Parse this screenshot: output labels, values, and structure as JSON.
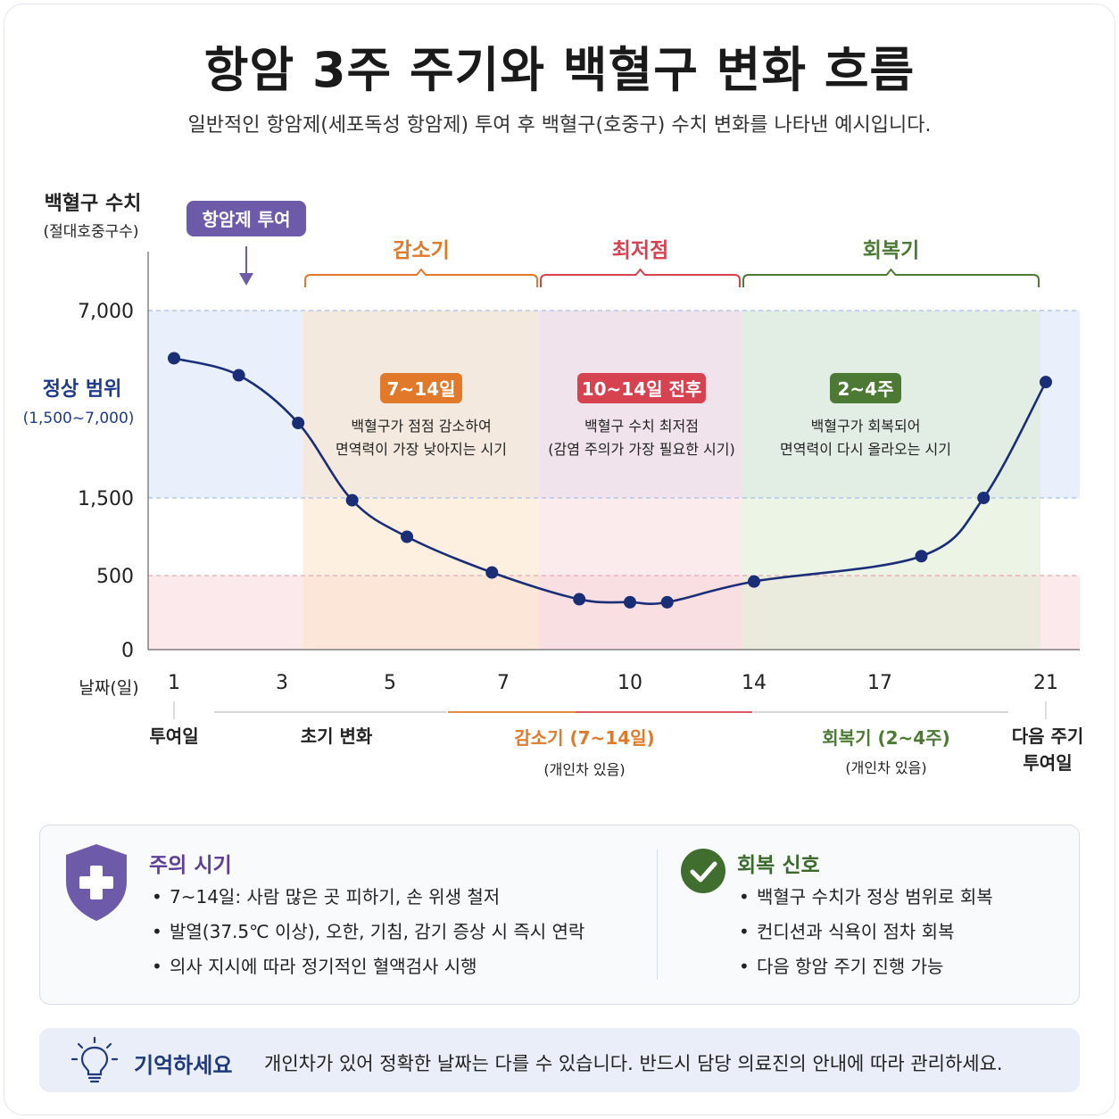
{
  "title": "항암 3주 주기와 백혈구 변화 흐름",
  "subtitle": "일반적인 항암제(세포독성 항암제) 투여 후 백혈구(호중구) 수치 변화를 나타낸 예시입니다.",
  "colors": {
    "curve": "#1a2e78",
    "normal_band": "#e9f0fb",
    "low_band": "#fbe9ec",
    "decrease": "#e07a2a",
    "nadir": "#d6424f",
    "recovery": "#4c7a34",
    "purple": "#6d5aa8",
    "navy": "#1f3a8a"
  },
  "chart_data": {
    "type": "line",
    "title": "항암 3주 주기와 백혈구 변화 흐름",
    "ylabel": "백혈구 수치",
    "ylabel_sub": "(절대호중구수)",
    "xlabel": "날짜(일)",
    "y_ticks": [
      "7,000",
      "1,500",
      "500",
      "0"
    ],
    "y_tick_values": [
      7000,
      1500,
      500,
      0
    ],
    "normal_range_label": "정상 범위",
    "normal_range_sub": "(1,500~7,000)",
    "normal_range": [
      1500,
      7000
    ],
    "x_ticks": [
      "1",
      "3",
      "5",
      "7",
      "10",
      "14",
      "17",
      "21"
    ],
    "series": [
      {
        "points": [
          {
            "x": 1,
            "y": 5600
          },
          {
            "x": 2.2,
            "y": 5100
          },
          {
            "x": 3.3,
            "y": 3700
          },
          {
            "x": 4.3,
            "y": 1470
          },
          {
            "x": 5.3,
            "y": 1000
          },
          {
            "x": 6.8,
            "y": 540
          },
          {
            "x": 8.8,
            "y": 340
          },
          {
            "x": 10,
            "y": 320
          },
          {
            "x": 11.2,
            "y": 320
          },
          {
            "x": 14,
            "y": 460
          },
          {
            "x": 18,
            "y": 750
          },
          {
            "x": 19.5,
            "y": 1500
          },
          {
            "x": 21,
            "y": 4900
          }
        ]
      }
    ],
    "dose_marker": "항암제 투여",
    "phases": [
      {
        "name": "감소기",
        "badge": "7~14일",
        "desc": [
          "백혈구가 점점 감소하여",
          "면역력이 가장 낮아지는 시기"
        ]
      },
      {
        "name": "최저점",
        "badge": "10~14일 전후",
        "desc": [
          "백혈구 수치 최저점",
          "(감염 주의가 가장 필요한 시기)"
        ]
      },
      {
        "name": "회복기",
        "badge": "2~4주",
        "desc": [
          "백혈구가 회복되어",
          "면역력이 다시 올라오는 시기"
        ]
      }
    ],
    "timeline": {
      "dose_day": "투여일",
      "early": "초기 변화",
      "decrease": "감소기 (7~14일)",
      "decrease_note": "(개인차 있음)",
      "recovery": "회복기 (2~4주)",
      "recovery_note": "(개인차 있음)",
      "next": [
        "다음 주기",
        "투여일"
      ]
    }
  },
  "caution": {
    "title": "주의 시기",
    "icon": "shield-plus-icon",
    "items": [
      "7~14일: 사람 많은 곳 피하기, 손 위생 철저",
      "발열(37.5℃ 이상), 오한, 기침, 감기 증상 시 즉시 연락",
      "의사 지시에 따라 정기적인 혈액검사 시행"
    ]
  },
  "recovery_signs": {
    "title": "회복 신호",
    "icon": "check-circle-icon",
    "items": [
      "백혈구 수치가 정상 범위로 회복",
      "컨디션과 식욕이 점차 회복",
      "다음 항암 주기 진행 가능"
    ]
  },
  "remember": {
    "icon": "lightbulb-icon",
    "title": "기억하세요",
    "text": "개인차가 있어 정확한 날짜는 다를 수 있습니다. 반드시 담당 의료진의 안내에 따라 관리하세요."
  }
}
